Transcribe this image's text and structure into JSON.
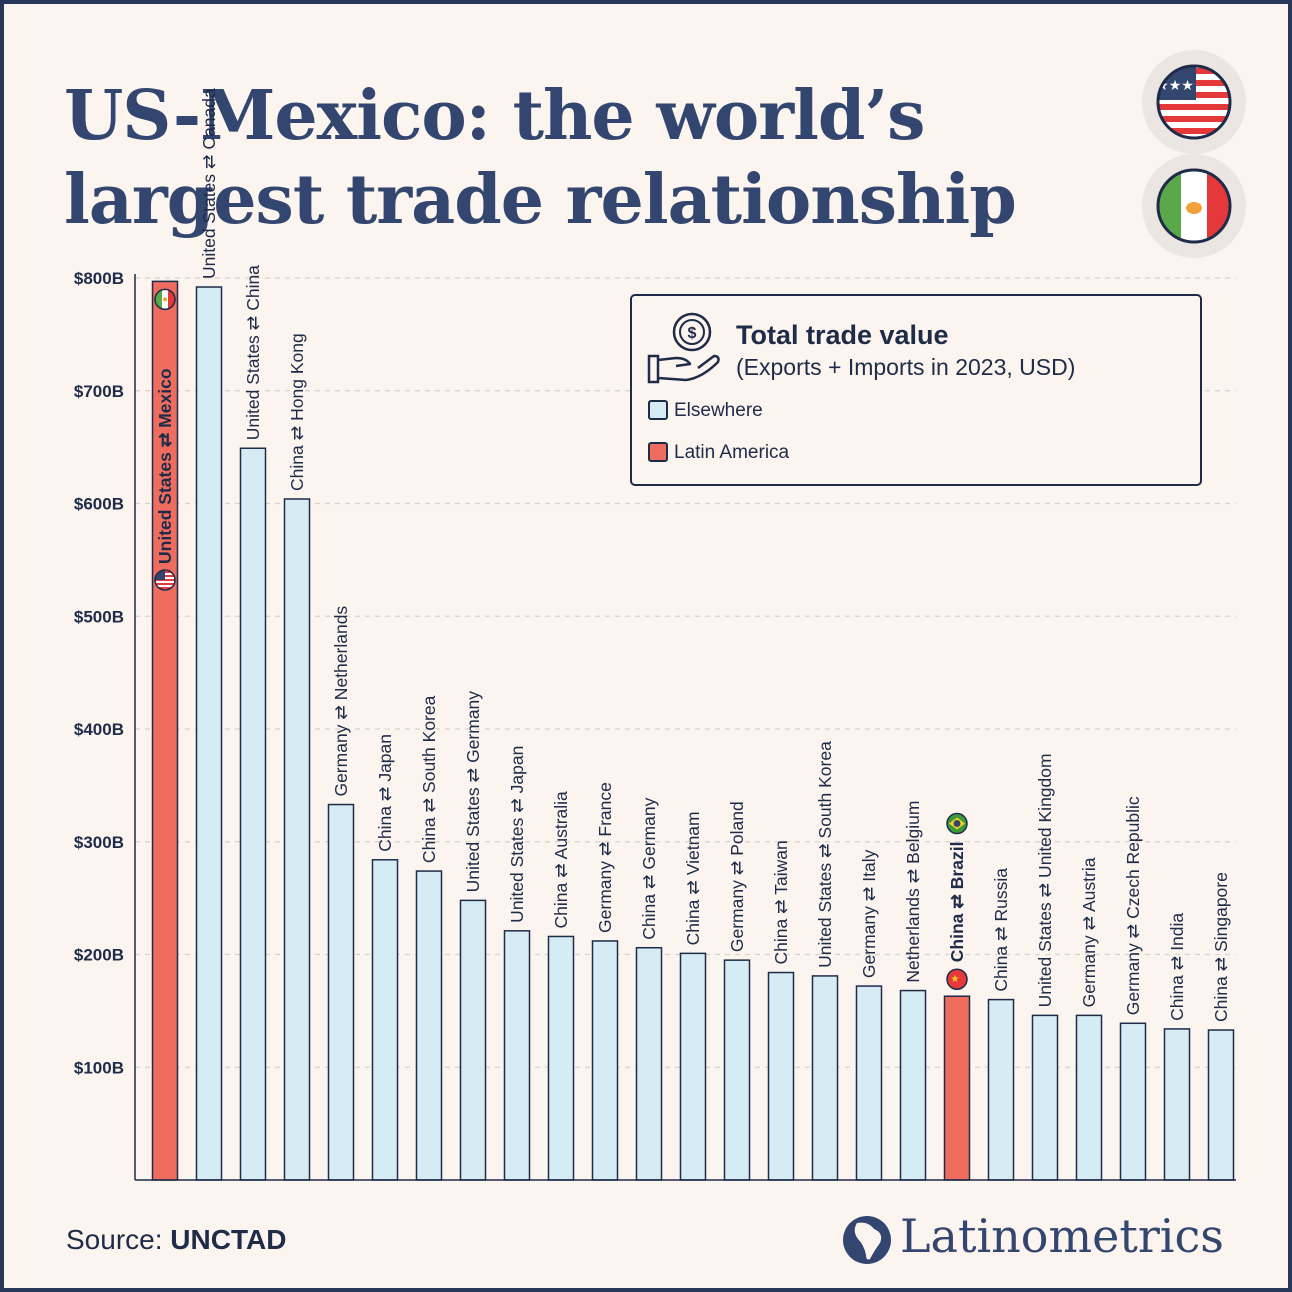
{
  "title_lines": [
    "US-Mexico: the world’s",
    "largest trade relationship"
  ],
  "flags": [
    "us-flag-icon",
    "mexico-flag-icon"
  ],
  "legend": {
    "icon": "money-hand-icon",
    "title": "Total trade value",
    "subtitle": "(Exports + Imports in 2023, USD)",
    "items": [
      {
        "label": "Elsewhere",
        "color": "#d6ecf5"
      },
      {
        "label": "Latin America",
        "color": "#ee6d5f"
      }
    ]
  },
  "source": {
    "label": "Source:",
    "value": "UNCTAD"
  },
  "brand": {
    "name": "Latinometrics",
    "icon": "latin-america-map-icon"
  },
  "colors": {
    "elsewhere": "#d6ecf5",
    "latin_america": "#ee6d5f",
    "ink": "#1e2b49",
    "title": "#33466f"
  },
  "chart_data": {
    "type": "bar",
    "ylim": [
      0,
      800
    ],
    "y_unit": "billion USD",
    "yticks": [
      100,
      200,
      300,
      400,
      500,
      600,
      700,
      800
    ],
    "ytick_labels": [
      "$100B",
      "$200B",
      "$300B",
      "$400B",
      "$500B",
      "$600B",
      "$700B",
      "$800B"
    ],
    "grid": true,
    "legend_position": "top-right",
    "categories": [
      "United States ⇄ Mexico",
      "United States ⇄ Canada",
      "United States ⇄ China",
      "China ⇄ Hong Kong",
      "Germany ⇄ Netherlands",
      "China ⇄ Japan",
      "China ⇄ South Korea",
      "United States ⇄ Germany",
      "United States ⇄ Japan",
      "China ⇄ Australia",
      "Germany ⇄ France",
      "China ⇄ Germany",
      "China ⇄ Vietnam",
      "Germany ⇄ Poland",
      "China ⇄ Taiwan",
      "United States ⇄ South Korea",
      "Germany ⇄ Italy",
      "Netherlands ⇄ Belgium",
      "China ⇄ Brazil",
      "China ⇄ Russia",
      "United States ⇄ United Kingdom",
      "Germany ⇄ Austria",
      "Germany ⇄ Czech Republic",
      "China ⇄ India",
      "China ⇄ Singapore"
    ],
    "values": [
      797,
      792,
      649,
      604,
      333,
      284,
      274,
      248,
      221,
      216,
      212,
      206,
      201,
      195,
      184,
      181,
      172,
      168,
      163,
      160,
      146,
      146,
      139,
      134,
      133
    ],
    "groups": [
      "Latin America",
      "Elsewhere",
      "Elsewhere",
      "Elsewhere",
      "Elsewhere",
      "Elsewhere",
      "Elsewhere",
      "Elsewhere",
      "Elsewhere",
      "Elsewhere",
      "Elsewhere",
      "Elsewhere",
      "Elsewhere",
      "Elsewhere",
      "Elsewhere",
      "Elsewhere",
      "Elsewhere",
      "Elsewhere",
      "Latin America",
      "Elsewhere",
      "Elsewhere",
      "Elsewhere",
      "Elsewhere",
      "Elsewhere",
      "Elsewhere"
    ],
    "bar_icons": {
      "0": [
        "us-flag-icon",
        "mexico-flag-icon"
      ],
      "18": [
        "china-flag-icon",
        "brazil-flag-icon"
      ]
    }
  }
}
